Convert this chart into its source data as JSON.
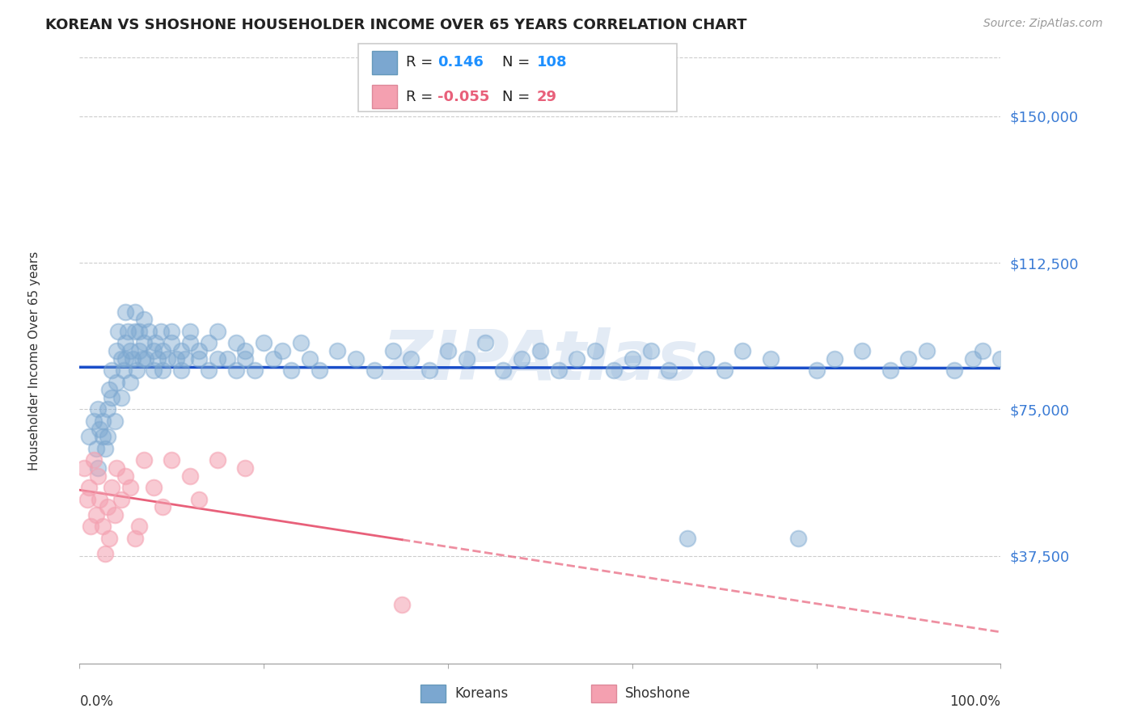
{
  "title": "KOREAN VS SHOSHONE HOUSEHOLDER INCOME OVER 65 YEARS CORRELATION CHART",
  "source": "Source: ZipAtlas.com",
  "ylabel": "Householder Income Over 65 years",
  "ytick_labels": [
    "$37,500",
    "$75,000",
    "$112,500",
    "$150,000"
  ],
  "ytick_values": [
    37500,
    75000,
    112500,
    150000
  ],
  "ymin": 10000,
  "ymax": 165000,
  "xmin": 0.0,
  "xmax": 1.0,
  "korean_R": 0.146,
  "korean_N": 108,
  "shoshone_R": -0.055,
  "shoshone_N": 29,
  "korean_color": "#7BA7D0",
  "shoshone_color": "#F4A0B0",
  "korean_line_color": "#1A4EC9",
  "shoshone_line_color": "#E8607A",
  "watermark_color": "#C8D8EC",
  "watermark_text": "ZIPAtlas",
  "title_fontsize": 13,
  "ytick_fontsize": 13,
  "korean_scatter_x": [
    0.01,
    0.015,
    0.018,
    0.02,
    0.02,
    0.022,
    0.025,
    0.025,
    0.028,
    0.03,
    0.03,
    0.032,
    0.035,
    0.035,
    0.038,
    0.04,
    0.04,
    0.042,
    0.045,
    0.045,
    0.048,
    0.05,
    0.05,
    0.05,
    0.052,
    0.055,
    0.055,
    0.058,
    0.06,
    0.06,
    0.062,
    0.065,
    0.065,
    0.068,
    0.07,
    0.07,
    0.072,
    0.075,
    0.08,
    0.08,
    0.082,
    0.085,
    0.088,
    0.09,
    0.09,
    0.095,
    0.1,
    0.1,
    0.105,
    0.11,
    0.11,
    0.115,
    0.12,
    0.12,
    0.13,
    0.13,
    0.14,
    0.14,
    0.15,
    0.15,
    0.16,
    0.17,
    0.17,
    0.18,
    0.18,
    0.19,
    0.2,
    0.21,
    0.22,
    0.23,
    0.24,
    0.25,
    0.26,
    0.28,
    0.3,
    0.32,
    0.34,
    0.36,
    0.38,
    0.4,
    0.42,
    0.44,
    0.46,
    0.48,
    0.5,
    0.52,
    0.54,
    0.56,
    0.58,
    0.6,
    0.62,
    0.64,
    0.66,
    0.68,
    0.7,
    0.72,
    0.75,
    0.78,
    0.8,
    0.82,
    0.85,
    0.88,
    0.9,
    0.92,
    0.95,
    0.97,
    0.98,
    1.0
  ],
  "korean_scatter_y": [
    68000,
    72000,
    65000,
    60000,
    75000,
    70000,
    68000,
    72000,
    65000,
    75000,
    68000,
    80000,
    78000,
    85000,
    72000,
    90000,
    82000,
    95000,
    88000,
    78000,
    85000,
    92000,
    88000,
    100000,
    95000,
    90000,
    82000,
    88000,
    95000,
    100000,
    85000,
    90000,
    95000,
    88000,
    92000,
    98000,
    88000,
    95000,
    90000,
    85000,
    92000,
    88000,
    95000,
    90000,
    85000,
    88000,
    92000,
    95000,
    88000,
    90000,
    85000,
    88000,
    92000,
    95000,
    88000,
    90000,
    85000,
    92000,
    88000,
    95000,
    88000,
    92000,
    85000,
    90000,
    88000,
    85000,
    92000,
    88000,
    90000,
    85000,
    92000,
    88000,
    85000,
    90000,
    88000,
    85000,
    90000,
    88000,
    85000,
    90000,
    88000,
    92000,
    85000,
    88000,
    90000,
    85000,
    88000,
    90000,
    85000,
    88000,
    90000,
    85000,
    42000,
    88000,
    85000,
    90000,
    88000,
    42000,
    85000,
    88000,
    90000,
    85000,
    88000,
    90000,
    85000,
    88000,
    90000,
    88000
  ],
  "shoshone_scatter_x": [
    0.005,
    0.008,
    0.01,
    0.012,
    0.015,
    0.018,
    0.02,
    0.022,
    0.025,
    0.028,
    0.03,
    0.032,
    0.035,
    0.038,
    0.04,
    0.045,
    0.05,
    0.055,
    0.06,
    0.065,
    0.07,
    0.08,
    0.09,
    0.1,
    0.12,
    0.13,
    0.15,
    0.18,
    0.35
  ],
  "shoshone_scatter_y": [
    60000,
    52000,
    55000,
    45000,
    62000,
    48000,
    58000,
    52000,
    45000,
    38000,
    50000,
    42000,
    55000,
    48000,
    60000,
    52000,
    58000,
    55000,
    42000,
    45000,
    62000,
    55000,
    50000,
    62000,
    58000,
    52000,
    62000,
    60000,
    25000
  ]
}
